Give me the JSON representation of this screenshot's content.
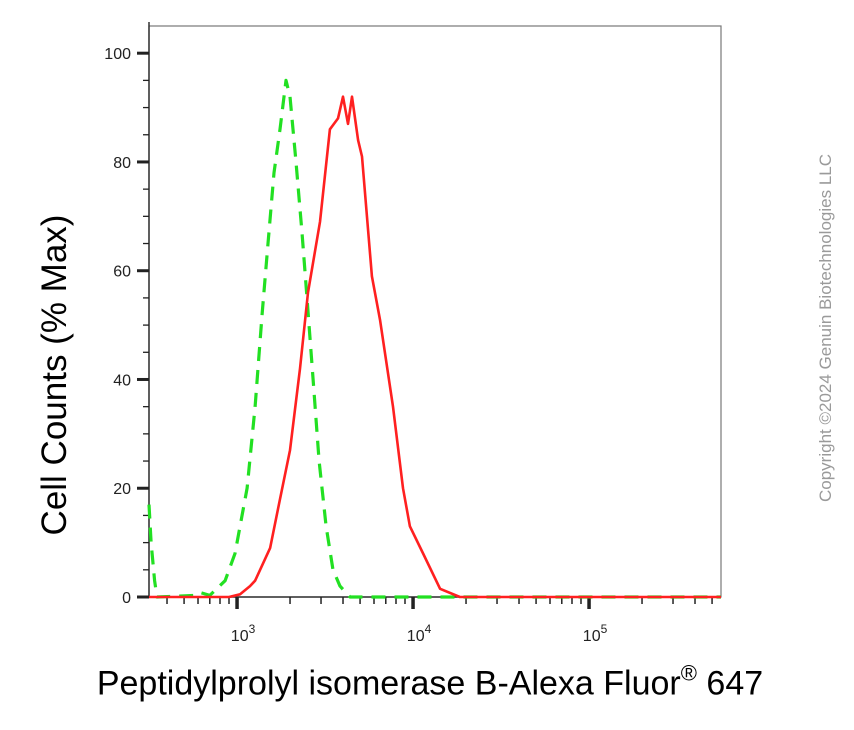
{
  "chart_data": {
    "type": "line",
    "title": "",
    "xlabel": "Peptidylprolyl isomerase B-Alexa Fluor",
    "xlabel_sup": "®",
    "xlabel_suffix": " 647",
    "ylabel": "Cell Counts (% Max)",
    "x_scale": "log",
    "xlim": [
      316,
      562000
    ],
    "ylim": [
      0,
      105
    ],
    "x_ticks": [
      {
        "value": 1000,
        "base": "10",
        "exp": "3"
      },
      {
        "value": 10000,
        "base": "10",
        "exp": "4"
      },
      {
        "value": 100000,
        "base": "10",
        "exp": "5"
      }
    ],
    "y_ticks": [
      0,
      20,
      40,
      60,
      80,
      100
    ],
    "grid": false,
    "legend": "none",
    "series": [
      {
        "style": "dashed",
        "color": "#22e022",
        "x": [
          316,
          325,
          340,
          351,
          577,
          620,
          700,
          855,
          974,
          1140,
          1266,
          1387,
          1500,
          1622,
          1755,
          1898,
          2000,
          2163,
          2340,
          2498,
          2704,
          2926,
          3207,
          3510,
          3845,
          4382,
          16000,
          562000
        ],
        "y": [
          17,
          10,
          3,
          0,
          0.3,
          0.8,
          0.3,
          3,
          8,
          20,
          35,
          52,
          65,
          78,
          86,
          95,
          92,
          80,
          67,
          55,
          40,
          25,
          13,
          5,
          2,
          0,
          0,
          0
        ]
      },
      {
        "style": "solid",
        "color": "#ff2020",
        "x": [
          316,
          900,
          1040,
          1185,
          1266,
          1443,
          1540,
          1755,
          2000,
          2280,
          2530,
          2960,
          3370,
          3745,
          4000,
          4270,
          4500,
          4870,
          5130,
          5840,
          6490,
          7690,
          8770,
          9600,
          11400,
          14240,
          18450,
          562000
        ],
        "y": [
          0,
          0,
          0.5,
          2,
          3,
          7,
          9,
          18,
          27,
          42,
          56,
          69,
          86,
          88,
          92,
          87,
          92,
          84,
          81,
          59,
          51,
          35,
          20,
          13,
          8,
          1.5,
          0,
          0
        ]
      }
    ]
  },
  "watermark": "Copyright ©2024 Genuin Biotechnologies LLC"
}
